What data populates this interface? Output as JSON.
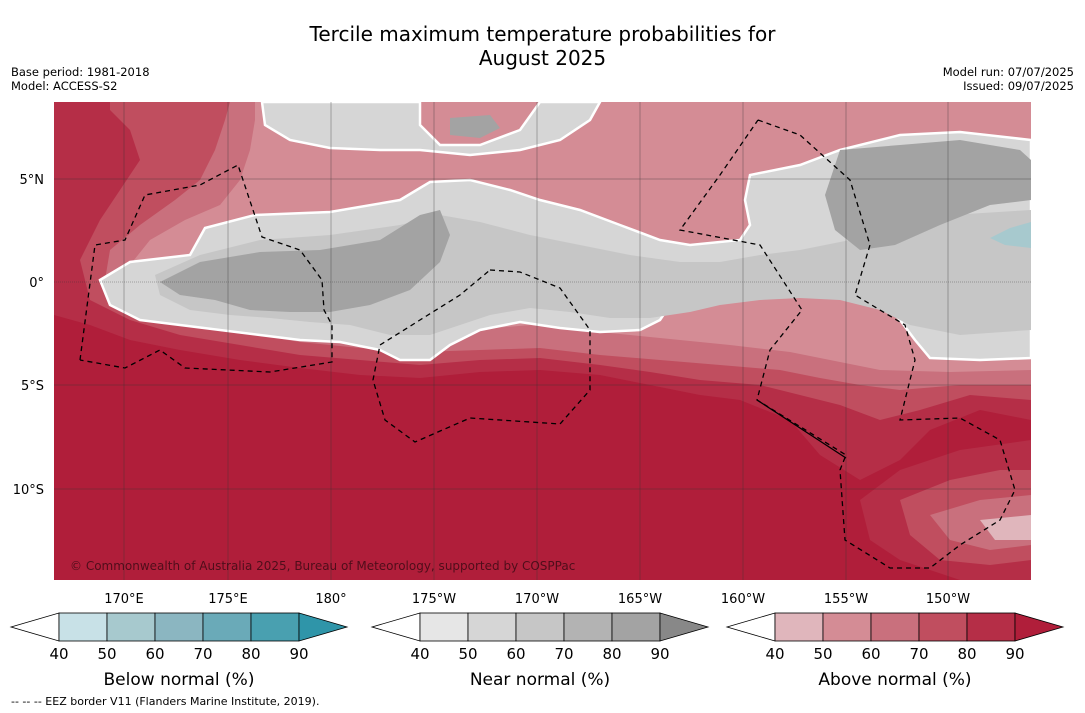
{
  "title_line1": "Tercile maximum temperature probabilities for",
  "title_line2": "August 2025",
  "base_period": "Base period: 1981-2018",
  "model": "Model: ACCESS-S2",
  "model_run": "Model run: 07/07/2025",
  "issued": "Issued: 09/07/2025",
  "copyright": "© Commonwealth of Australia 2025, Bureau of Meteorology, supported by COSPPac",
  "footnote": "--  --  -- EEZ border V11 (Flanders Marine Institute, 2019).",
  "lat_labels": [
    "5°N",
    "0°",
    "5°S",
    "10°S"
  ],
  "lon_labels": [
    "170°E",
    "175°E",
    "180°",
    "175°W",
    "170°W",
    "165°W",
    "160°W",
    "155°W",
    "150°W"
  ],
  "colorbars": [
    {
      "label": "Below normal (%)",
      "ticks": [
        "40",
        "50",
        "60",
        "70",
        "80",
        "90"
      ],
      "colors": [
        "#c8e1e7",
        "#a7c9ce",
        "#8bb6c1",
        "#6aaab8",
        "#49a0b0"
      ],
      "extend_color": "#2f95a9"
    },
    {
      "label": "Near normal (%)",
      "ticks": [
        "40",
        "50",
        "60",
        "70",
        "80",
        "90"
      ],
      "colors": [
        "#e6e6e6",
        "#d6d6d6",
        "#c6c6c6",
        "#b3b3b3",
        "#a3a3a3"
      ],
      "extend_color": "#888888"
    },
    {
      "label": "Above normal (%)",
      "ticks": [
        "40",
        "50",
        "60",
        "70",
        "80",
        "90"
      ],
      "colors": [
        "#e0b6bc",
        "#d48c95",
        "#c9707d",
        "#c04e5f",
        "#b52e47"
      ],
      "extend_color": "#b01e3a"
    }
  ],
  "colors": {
    "above_90": "#b01e3a",
    "above_80": "#b52e47",
    "above_70": "#c04e5f",
    "above_60": "#c9707d",
    "above_50": "#d48c95",
    "above_40": "#e0b6bc",
    "near_40": "#e6e6e6",
    "near_50": "#d6d6d6",
    "near_60": "#c6c6c6",
    "near_70": "#b3b3b3",
    "near_80": "#a3a3a3",
    "below_50": "#a7c9ce"
  }
}
